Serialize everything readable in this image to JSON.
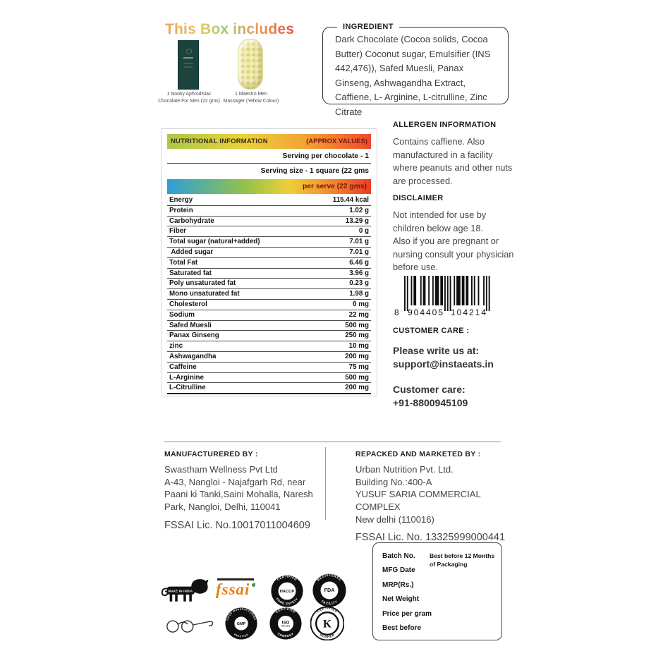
{
  "box_includes": {
    "title": "This Box includes",
    "items": [
      {
        "caption": [
          "1 Nooky  Aphrodisiac",
          "Chocolate For Men (22 gms)"
        ]
      },
      {
        "caption": [
          "1 Maestro Men",
          "Massager (Yellow Colour)"
        ]
      }
    ]
  },
  "ingredient": {
    "label": "INGREDIENT",
    "text": "Dark Chocolate (Cocoa solids, Cocoa Butter) Coconut sugar, Emulsifier (INS 442,476)), Safed Muesli, Panax Ginseng, Ashwagandha Extract, Caffiene,  L- Arginine, L-citrulline, Zinc Citrate"
  },
  "nutrition": {
    "header_left": "NUTRITIONAL INFORMATION",
    "header_right": "(APPROX VALUES)",
    "serving_row_1": "Serving per chocolate - 1",
    "serving_row_2": "Serving size - 1 square (22 gms",
    "per_serve": "per serve (22 gms)",
    "rows": [
      [
        "Energy",
        "115.44 kcal"
      ],
      [
        "Protein",
        "1.02 g"
      ],
      [
        "Carbohydrate",
        "13.29 g"
      ],
      [
        "Fiber",
        "0 g"
      ],
      [
        "Total sugar (natural+added)",
        "7.01 g"
      ],
      [
        " Added sugar",
        "7.01 g"
      ],
      [
        "Total Fat",
        "6.46 g"
      ],
      [
        "Saturated fat",
        "3.96 g"
      ],
      [
        "Poly unsaturated fat",
        "0.23 g"
      ],
      [
        "Mono unsaturated fat",
        "1.98 g"
      ],
      [
        "Cholesterol",
        "0 mg"
      ],
      [
        "Sodium",
        "22 mg"
      ],
      [
        "Safed Muesli",
        "500 mg"
      ],
      [
        "Panax Ginseng",
        "250 mg"
      ],
      [
        "zinc",
        "10 mg"
      ],
      [
        "Ashwagandha",
        "200 mg"
      ],
      [
        "Caffeine",
        "75 mg"
      ],
      [
        "L-Arginine",
        "500 mg"
      ],
      [
        "L-Citrulline",
        "200 mg"
      ]
    ]
  },
  "allergen": {
    "title": "ALLERGEN INFORMATION",
    "text": "Contains caffiene. Also manufactured in a facility where peanuts and other nuts are processed."
  },
  "disclaimer": {
    "title": "DISCLAIMER",
    "lines": [
      "Not intended for use by children below age 18.",
      "Also if you are pregnant or nursing consult your physician before use."
    ]
  },
  "barcode": {
    "left_digit": "8",
    "group1": "904405",
    "group2": "104214"
  },
  "customer_care": {
    "title": "CUSTOMER CARE :",
    "write_block": [
      "Please write us at:",
      "support@instaeats.in"
    ],
    "phone_block": [
      "Customer care:",
      "+91-8800945109"
    ]
  },
  "manufactured": {
    "title": "MANUFACTURERED BY :",
    "lines": [
      "Swastham Wellness Pvt Ltd",
      "A-43, Nangloi - Najafgarh Rd, near",
      "Paani ki Tanki,Saini Mohalla, Naresh",
      "Park, Nangloi, Delhi, 110041"
    ],
    "fssai": "FSSAI Lic. No.10017011004609"
  },
  "repacked": {
    "title": "REPACKED AND MARKETED BY :",
    "lines": [
      "Urban Nutrition Pvt. Ltd.",
      "Building No.:400-A",
      "YUSUF SARIA COMMERCIAL COMPLEX",
      "New delhi (110016)"
    ],
    "fssai": "FSSAI Lic. No. 13325999000441"
  },
  "batch_box": {
    "labels": [
      "Batch No.",
      "MFG Date",
      "MRP(Rs.)",
      "Net Weight",
      "Price per gram",
      "Best before"
    ],
    "note": [
      "Best before 12 Months",
      "of Packaging"
    ]
  },
  "logos": {
    "make_in_india": "MAKE IN INDIA",
    "fssai_label": "fssai",
    "badges": [
      {
        "id": "haccp",
        "top": "CERTIFIED",
        "center": "HACCP",
        "bottom": "FOOD SAFETY",
        "style": "dark",
        "centerR": 27,
        "centerSize": 12.5
      },
      {
        "id": "fda",
        "top": "REGISTERED",
        "center": "FDA",
        "bottom": "FACILITY",
        "style": "dark",
        "centerR": 26,
        "centerSize": 15
      },
      {
        "id": "gmp",
        "top": "GOOD MANUFACTURING",
        "center": "GMP",
        "bottom": "PRACTICE",
        "style": "dark",
        "ringSize": 7.5,
        "centerR": 21,
        "centerSize": 12
      },
      {
        "id": "iso",
        "top": "CERTIFIED",
        "center": "ISO",
        "sub": "9001:2015",
        "bottom": "COMPANY",
        "style": "dark",
        "centerR": 24,
        "centerSize": 13.5
      },
      {
        "id": "kosher",
        "top": "CERTIFIED",
        "center": "K",
        "bottom": "KOSHER",
        "style": "light",
        "centerSize": 32
      }
    ]
  },
  "colors": {
    "accent_orange": "#e87e10",
    "badge_black": "#101010",
    "gradient_green": "#aac84a",
    "gradient_yellow": "#ecd13b",
    "gradient_red": "#ec4a2e",
    "gradient_blue": "#2d9fd8",
    "chocolate_box_green": "#1a433d",
    "massager_yellow": "#ece7a4"
  }
}
